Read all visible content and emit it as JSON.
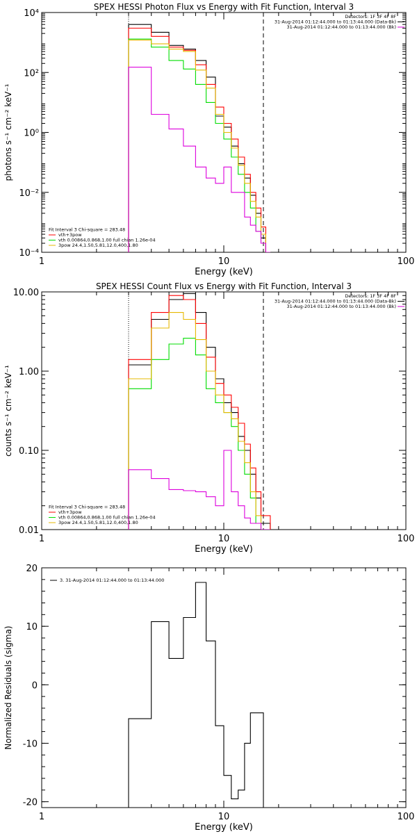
{
  "chart_data": [
    {
      "type": "line",
      "title": "SPEX HESSI Photon Flux vs Energy with Fit Function, Interval 3",
      "xlabel": "Energy (keV)",
      "ylabel": "photons s⁻¹ cm⁻² keV⁻¹",
      "xscale": "log",
      "yscale": "log",
      "xlim": [
        1,
        100
      ],
      "ylim": [
        0.0001,
        10000
      ],
      "xticks": [
        "1",
        "10",
        "100"
      ],
      "yticks": [
        "10⁴",
        "10²",
        "10⁰",
        "10⁻²",
        "10⁻⁴"
      ],
      "energy_range_markers": [
        3.0,
        16.5
      ],
      "legend_topright": [
        "Detectors: 1F 3F 4F 8F",
        "31-Aug-2014 01:12:44.000 to 01:13:44.000 (Data-Bk)",
        "31-Aug-2014 01:12:44.000 to 01:13:44.000 (Bk)"
      ],
      "legend_bottomleft": [
        "Fit Interval 3   Chi-square = 283.48",
        "vth+3pow",
        "vth 0.00864,0.868,1.00  full chian 1.26e-04",
        "3pow 24.4,1.50,5.81,12.0,400,1.80"
      ],
      "bin_edges": [
        3.0,
        3.5,
        4.0,
        4.5,
        5.0,
        5.5,
        6.0,
        6.5,
        7.0,
        7.5,
        8.0,
        8.5,
        9.0,
        9.5,
        10.0,
        11.0,
        12.0,
        13.0,
        14.0,
        15.0,
        16.0,
        17.0,
        18.0
      ],
      "series": [
        {
          "name": "Data-Bk",
          "color": "#000000",
          "values": [
            4000,
            4000,
            2200,
            2200,
            800,
            800,
            600,
            600,
            250,
            250,
            70,
            70,
            3.5,
            3.5,
            1.5,
            0.35,
            0.09,
            0.03,
            0.008,
            0.002,
            0.0003,
            0.0001
          ]
        },
        {
          "name": "vth+3pow",
          "color": "#ff0000",
          "values": [
            3000,
            3000,
            1600,
            1600,
            700,
            700,
            550,
            550,
            180,
            180,
            40,
            40,
            7,
            7,
            2,
            0.6,
            0.15,
            0.04,
            0.01,
            0.003,
            0.0007,
            0.0001
          ]
        },
        {
          "name": "vth",
          "color": "#00dd00",
          "values": [
            1300,
            1300,
            700,
            700,
            250,
            250,
            130,
            130,
            40,
            40,
            10,
            10,
            2,
            2,
            0.6,
            0.15,
            0.04,
            0.01,
            0.003,
            0.0005,
            0.0002,
            0.0001
          ]
        },
        {
          "name": "3pow",
          "color": "#e6b800",
          "values": [
            1200,
            1200,
            900,
            900,
            600,
            600,
            500,
            500,
            120,
            120,
            30,
            30,
            4,
            4,
            1,
            0.3,
            0.08,
            0.02,
            0.005,
            0.0015,
            0.0004,
            0.0001
          ]
        },
        {
          "name": "Bk",
          "color": "#dd00dd",
          "values": [
            150,
            150,
            4,
            4,
            1.3,
            1.3,
            0.35,
            0.35,
            0.07,
            0.07,
            0.03,
            0.03,
            0.02,
            0.02,
            0.07,
            0.01,
            0.01,
            0.0015,
            0.0008,
            0.0005,
            0.0002,
            0.0001
          ]
        }
      ]
    },
    {
      "type": "line",
      "title": "SPEX HESSI Count Flux vs Energy with Fit Function, Interval 3",
      "xlabel": "Energy (keV)",
      "ylabel": "counts s⁻¹ cm⁻² keV⁻¹",
      "xscale": "log",
      "yscale": "log",
      "xlim": [
        1,
        100
      ],
      "ylim": [
        0.01,
        10.0
      ],
      "xticks": [
        "1",
        "10",
        "100"
      ],
      "yticks": [
        "10.00",
        "1.00",
        "0.10",
        "0.01"
      ],
      "energy_range_markers": [
        3.0,
        16.5
      ],
      "legend_topright": [
        "Detectors: 1F 3F 4F 8F",
        "31-Aug-2014 01:12:44.000 to 01:13:44.000 (Data-Bk)",
        "31-Aug-2014 01:12:44.000 to 01:13:44.000 (Bk)"
      ],
      "legend_bottomleft": [
        "Fit Interval 3   Chi-square = 283.48",
        "vth+3pow",
        "vth 0.00864,0.868,1.00  full chian 1.26e-04",
        "3pow 24.4,1.50,5.81,12.0,400,1.80"
      ],
      "bin_edges": [
        3.0,
        4.0,
        5.0,
        6.0,
        7.0,
        8.0,
        9.0,
        10.0,
        11.0,
        12.0,
        13.0,
        14.0,
        15.0,
        16.0,
        17.0,
        18.0
      ],
      "series": [
        {
          "name": "Data-Bk",
          "color": "#000000",
          "values": [
            1.2,
            4.5,
            8.0,
            9.5,
            5.5,
            2.0,
            0.8,
            0.4,
            0.3,
            0.15,
            0.1,
            0.05,
            0.025,
            0.012,
            0.012
          ]
        },
        {
          "name": "vth+3pow",
          "color": "#ff0000",
          "values": [
            1.4,
            5.5,
            9.0,
            8.0,
            4.0,
            1.5,
            0.7,
            0.5,
            0.35,
            0.22,
            0.12,
            0.06,
            0.03,
            0.015,
            0.015
          ]
        },
        {
          "name": "vth",
          "color": "#00dd00",
          "values": [
            0.6,
            1.4,
            2.2,
            2.6,
            1.6,
            0.6,
            0.4,
            0.3,
            0.2,
            0.1,
            0.05,
            0.025,
            0.012,
            0.01,
            0.01
          ]
        },
        {
          "name": "3pow",
          "color": "#e6b800",
          "values": [
            0.8,
            3.5,
            5.5,
            4.5,
            2.5,
            1.0,
            0.5,
            0.3,
            0.25,
            0.13,
            0.07,
            0.03,
            0.015,
            0.01,
            0.01
          ]
        },
        {
          "name": "Bk",
          "color": "#dd00dd",
          "values": [
            0.057,
            0.044,
            0.032,
            0.031,
            0.03,
            0.026,
            0.02,
            0.1,
            0.03,
            0.02,
            0.014,
            0.012,
            0.012,
            0.01,
            0.01
          ]
        }
      ]
    },
    {
      "type": "line",
      "title": "",
      "xlabel": "Energy (keV)",
      "ylabel": "Normalized Residuals (sigma)",
      "xscale": "log",
      "yscale": "linear",
      "xlim": [
        1,
        100
      ],
      "ylim": [
        -21,
        20
      ],
      "xticks": [
        "1",
        "10",
        "100"
      ],
      "yticks": [
        "20",
        "10",
        "0",
        "-10",
        "-20"
      ],
      "legend": [
        "3. 31-Aug-2014 01:12:44.000 to 01:13:44.000"
      ],
      "bin_edges": [
        3.0,
        4.0,
        5.0,
        6.0,
        7.0,
        8.0,
        9.0,
        10.0,
        11.0,
        12.0,
        13.0,
        14.0,
        15.0,
        16.5
      ],
      "series": [
        {
          "name": "3. 31-Aug-2014 01:12:44.000 to 01:13:44.000",
          "color": "#000000",
          "values": [
            -5.8,
            10.8,
            4.5,
            11.5,
            17.5,
            7.5,
            -7.0,
            -15.5,
            -19.5,
            -18.0,
            -10.0,
            -4.8,
            -4.8
          ]
        }
      ]
    }
  ]
}
